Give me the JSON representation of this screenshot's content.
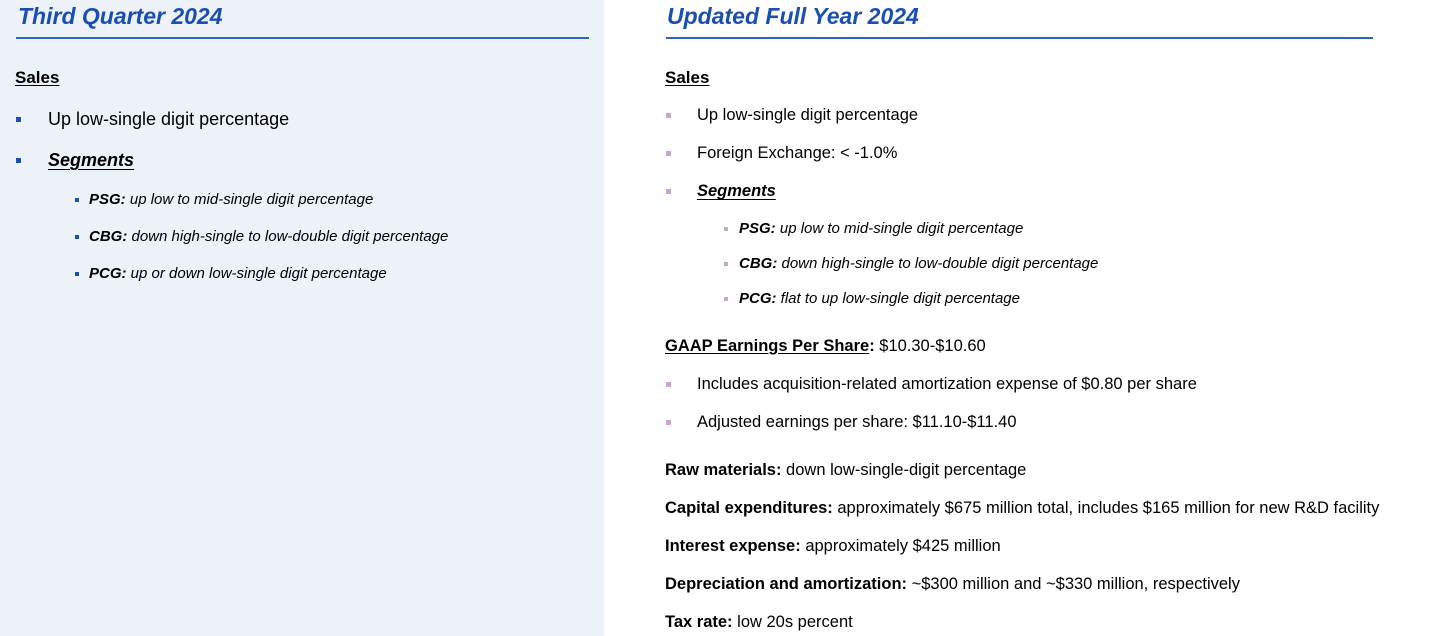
{
  "left": {
    "title": "Third Quarter 2024",
    "sales_heading": "Sales",
    "bullets": [
      "Up low-single digit percentage"
    ],
    "segments_label": "Segments",
    "segments": [
      {
        "key": "PSG:",
        "text": " up low to mid-single digit percentage"
      },
      {
        "key": "CBG:",
        "text": " down high-single to low-double digit percentage"
      },
      {
        "key": "PCG:",
        "text": " up or down low-single digit percentage"
      }
    ]
  },
  "right": {
    "title": "Updated Full Year 2024",
    "sales_heading": "Sales",
    "bullets": [
      "Up low-single digit percentage",
      "Foreign Exchange: < -1.0%"
    ],
    "segments_label": "Segments",
    "segments": [
      {
        "key": "PSG:",
        "text": " up low to mid-single digit percentage"
      },
      {
        "key": "CBG:",
        "text": " down high-single to low-double digit percentage"
      },
      {
        "key": "PCG:",
        "text": " flat to up low-single digit percentage"
      }
    ],
    "eps": {
      "label": "GAAP Earnings Per Share",
      "colon": ":",
      "value": " $10.30-$10.60",
      "bullets": [
        "Includes acquisition-related amortization expense of $0.80 per share",
        "Adjusted earnings per share: $11.10-$11.40"
      ]
    },
    "items": [
      {
        "label": "Raw materials:",
        "value": " down low-single-digit percentage"
      },
      {
        "label": "Capital expenditures:",
        "value": " approximately $675 million total, includes $165 million for new R&D facility"
      },
      {
        "label": "Interest expense:",
        "value": " approximately $425 million"
      },
      {
        "label": "Depreciation and amortization:",
        "value": " ~$300 million and ~$330 million, respectively"
      },
      {
        "label": "Tax rate:",
        "value": " low 20s percent"
      }
    ]
  },
  "colors": {
    "title": "#1a4fb2",
    "left_bg": "#edf1f8",
    "left_bullet": "#1a4fb2",
    "right_bullet": "#c7a5cf"
  }
}
